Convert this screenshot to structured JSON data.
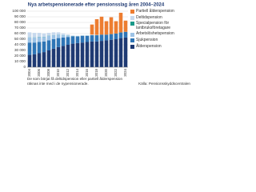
{
  "chart_data": {
    "type": "stacked-bar",
    "title": "Nya arbetspensionerade efter pensionsslag åren 2004–2024",
    "categories": [
      "2004",
      null,
      "2006",
      null,
      "2008",
      null,
      "2010",
      null,
      "2012",
      null,
      "2014",
      null,
      "2016",
      null,
      "2018",
      null,
      "2020",
      null,
      "2022",
      null,
      "2024"
    ],
    "series": [
      {
        "name": "Ålderspension",
        "color": "#1f3a73",
        "values": [
          22000,
          23000,
          25000,
          27000,
          30000,
          33000,
          36000,
          38000,
          40000,
          42000,
          43000,
          44000,
          45000,
          46000,
          46000,
          47000,
          48000,
          49000,
          50000,
          52000,
          53000
        ]
      },
      {
        "name": "Sjukpension",
        "color": "#2e75b6",
        "values": [
          22000,
          21000,
          20000,
          19000,
          18000,
          17000,
          16000,
          15000,
          14000,
          13000,
          12000,
          12000,
          11000,
          11000,
          11000,
          11000,
          10000,
          10000,
          10000,
          10000,
          10000
        ]
      },
      {
        "name": "Arbetslöshetspension",
        "color": "#9dc3e6",
        "values": [
          9000,
          9000,
          9000,
          8000,
          8000,
          7000,
          6000,
          4000,
          2000,
          500,
          0,
          0,
          0,
          0,
          0,
          0,
          0,
          0,
          0,
          0,
          0
        ]
      },
      {
        "name": "Specialpension för lantbruksföretagare",
        "color": "#1a9a8a",
        "values": [
          300,
          300,
          300,
          300,
          300,
          300,
          300,
          300,
          300,
          300,
          200,
          200,
          200,
          200,
          200,
          200,
          200,
          200,
          200,
          200,
          200
        ]
      },
      {
        "name": "Deltidspension",
        "color": "#c7d9ee",
        "values": [
          9000,
          8000,
          7000,
          6000,
          5000,
          5000,
          4000,
          3000,
          2000,
          1000,
          1000,
          1000,
          1000,
          1000,
          500,
          0,
          0,
          0,
          0,
          0,
          0
        ]
      },
      {
        "name": "Partiell ålderspension",
        "color": "#ed7d31",
        "values": [
          0,
          0,
          0,
          0,
          0,
          0,
          0,
          0,
          0,
          0,
          0,
          0,
          0,
          18000,
          28000,
          32000,
          24000,
          30000,
          22000,
          35000,
          20000
        ]
      }
    ],
    "ylim": [
      0,
      100000
    ],
    "yticks": [
      0,
      {
        "value": 10000,
        "label": "10 000"
      },
      {
        "value": 20000,
        "label": "20 000"
      },
      {
        "value": 30000,
        "label": "30 000"
      },
      {
        "value": 40000,
        "label": "40 000"
      },
      {
        "value": 50000,
        "label": "50 000"
      },
      {
        "value": 60000,
        "label": "60 000"
      },
      {
        "value": 70000,
        "label": "70 000"
      },
      {
        "value": 80000,
        "label": "80 000"
      },
      {
        "value": 90000,
        "label": "90 000"
      },
      {
        "value": 100000,
        "label": "100 000"
      }
    ],
    "grid": true,
    "notes": [
      "De som börjat få deltidspension eller partiell ålderspension",
      "räknas inte med i de nypensionerade."
    ],
    "source": "Källa: Pensionsskyddscentralen"
  }
}
